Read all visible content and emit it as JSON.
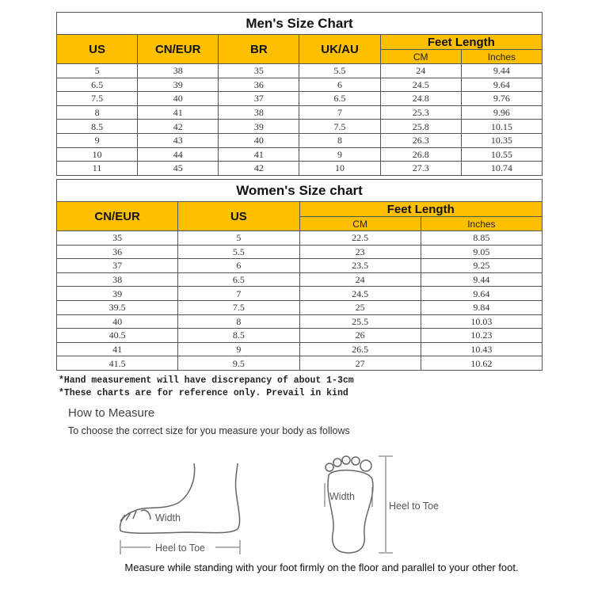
{
  "men": {
    "title": "Men's Size Chart",
    "headers": [
      "US",
      "CN/EUR",
      "BR",
      "UK/AU"
    ],
    "feet_length": "Feet Length",
    "cm": "CM",
    "inches": "Inches",
    "rows": [
      [
        "5",
        "38",
        "35",
        "5.5",
        "24",
        "9.44"
      ],
      [
        "6.5",
        "39",
        "36",
        "6",
        "24.5",
        "9.64"
      ],
      [
        "7.5",
        "40",
        "37",
        "6.5",
        "24.8",
        "9.76"
      ],
      [
        "8",
        "41",
        "38",
        "7",
        "25.3",
        "9.96"
      ],
      [
        "8.5",
        "42",
        "39",
        "7.5",
        "25.8",
        "10.15"
      ],
      [
        "9",
        "43",
        "40",
        "8",
        "26.3",
        "10.35"
      ],
      [
        "10",
        "44",
        "41",
        "9",
        "26.8",
        "10.55"
      ],
      [
        "11",
        "45",
        "42",
        "10",
        "27.3",
        "10.74"
      ]
    ]
  },
  "women": {
    "title": "Women's Size chart",
    "headers": [
      "CN/EUR",
      "US"
    ],
    "feet_length": "Feet Length",
    "cm": "CM",
    "inches": "Inches",
    "rows": [
      [
        "35",
        "5",
        "22.5",
        "8.85"
      ],
      [
        "36",
        "5.5",
        "23",
        "9.05"
      ],
      [
        "37",
        "6",
        "23.5",
        "9.25"
      ],
      [
        "38",
        "6.5",
        "24",
        "9.44"
      ],
      [
        "39",
        "7",
        "24.5",
        "9.64"
      ],
      [
        "39.5",
        "7.5",
        "25",
        "9.84"
      ],
      [
        "40",
        "8",
        "25.5",
        "10.03"
      ],
      [
        "40.5",
        "8.5",
        "26",
        "10.23"
      ],
      [
        "41",
        "9",
        "26.5",
        "10.43"
      ],
      [
        "41.5",
        "9.5",
        "27",
        "10.62"
      ]
    ]
  },
  "notes": [
    "*Hand measurement will have discrepancy of about 1-3cm",
    "*These charts are for reference only. Prevail in kind"
  ],
  "measure": {
    "title": "How to Measure",
    "subtitle": "To choose the correct size for you measure your body as follows",
    "width": "Width",
    "heel_to_toe": "Heel to Toe",
    "caption": "Measure while standing with your foot firmly on the floor and parallel to your other foot."
  },
  "colors": {
    "header": "#fdc000"
  }
}
